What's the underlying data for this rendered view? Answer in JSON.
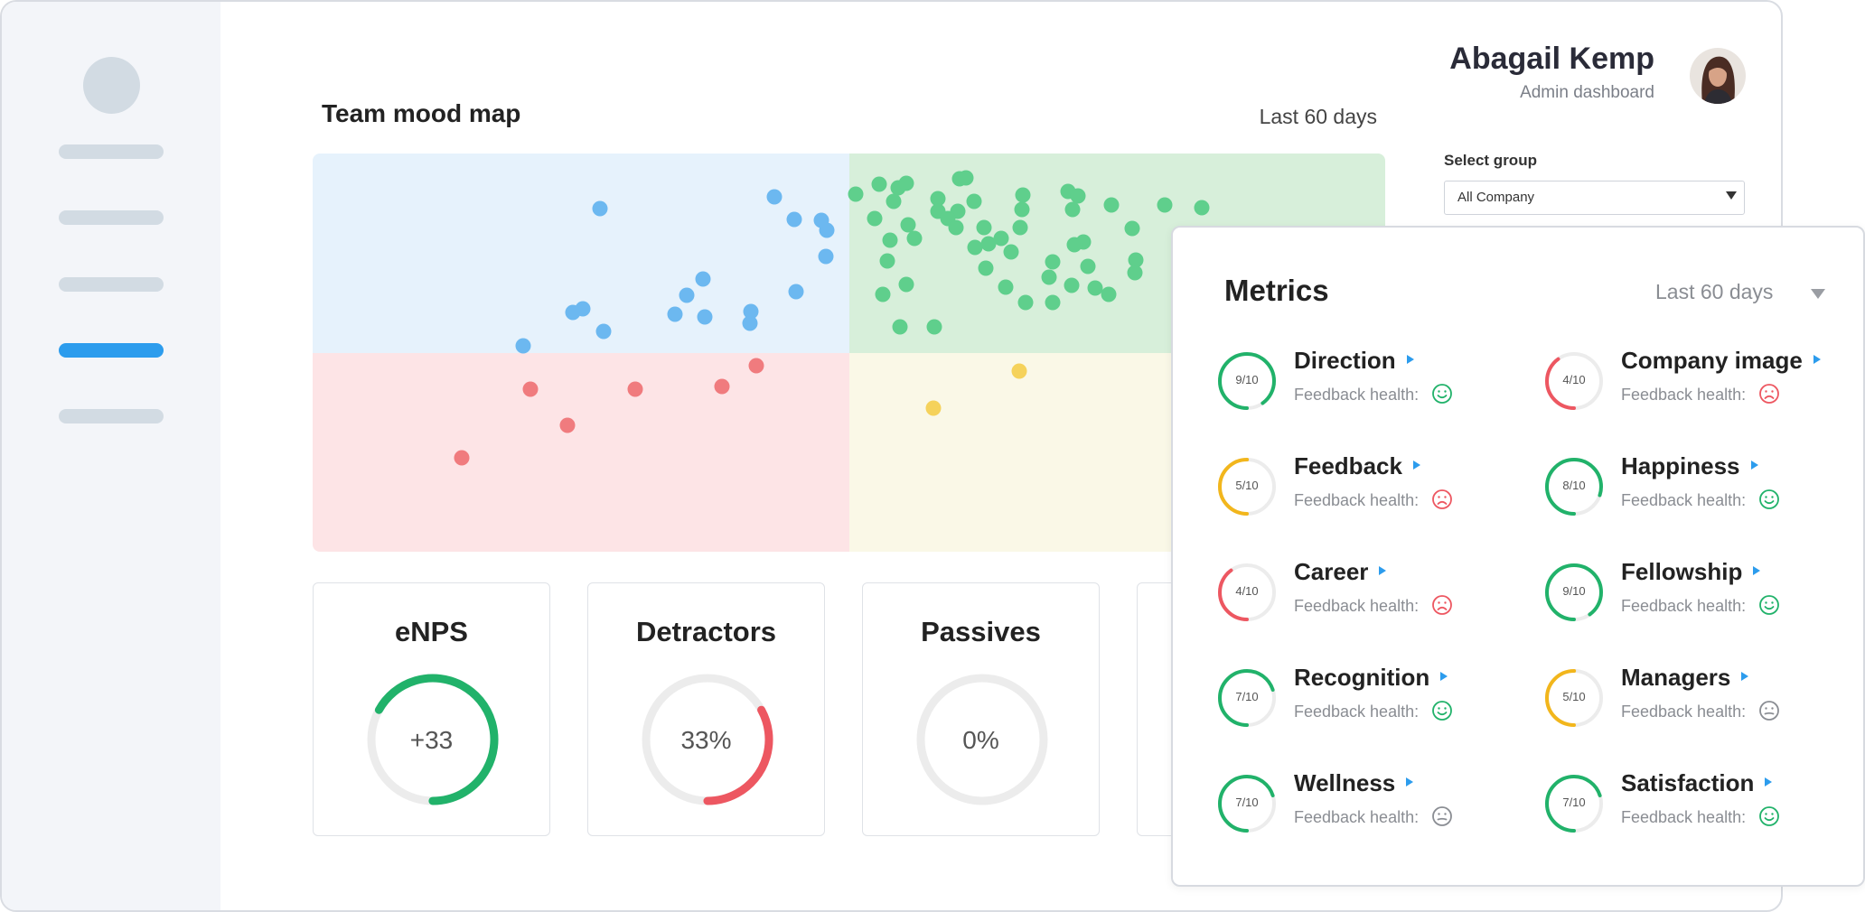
{
  "header": {
    "user_name": "Abagail Kemp",
    "user_role": "Admin dashboard"
  },
  "mood_map": {
    "title": "Team mood map",
    "range": "Last 60 days",
    "quadrant_colors": {
      "top_left": "#e6f2fc",
      "top_right": "#d7efda",
      "bottom_left": "#fde4e6",
      "bottom_right": "#faf8e7"
    },
    "dot_colors": {
      "blue": "#6cb8f0",
      "green": "#5fcf8c",
      "red": "#f07b7e",
      "yellow": "#f5d25b"
    }
  },
  "group_select": {
    "label": "Select group",
    "value": "All Company"
  },
  "stats": [
    {
      "title": "eNPS",
      "value": "+33",
      "color": "#21b26a",
      "fraction": 0.67
    },
    {
      "title": "Detractors",
      "value": "33%",
      "color": "#ed5761",
      "fraction": 0.33
    },
    {
      "title": "Passives",
      "value": "0%",
      "color": "#21b26a",
      "fraction": 0
    }
  ],
  "metrics": {
    "title": "Metrics",
    "range": "Last 60 days",
    "health_label": "Feedback health:",
    "items": [
      {
        "name": "Direction",
        "score": "9/10",
        "value": 9,
        "color": "#21b26a",
        "health": "happy"
      },
      {
        "name": "Company image",
        "score": "4/10",
        "value": 4,
        "color": "#ed5761",
        "health": "sad"
      },
      {
        "name": "Feedback",
        "score": "5/10",
        "value": 5,
        "color": "#f2b61c",
        "health": "sad"
      },
      {
        "name": "Happiness",
        "score": "8/10",
        "value": 8,
        "color": "#21b26a",
        "health": "happy"
      },
      {
        "name": "Career",
        "score": "4/10",
        "value": 4,
        "color": "#ed5761",
        "health": "sad"
      },
      {
        "name": "Fellowship",
        "score": "9/10",
        "value": 9,
        "color": "#21b26a",
        "health": "happy"
      },
      {
        "name": "Recognition",
        "score": "7/10",
        "value": 7,
        "color": "#21b26a",
        "health": "happy"
      },
      {
        "name": "Managers",
        "score": "5/10",
        "value": 5,
        "color": "#f2b61c",
        "health": "neutral"
      },
      {
        "name": "Wellness",
        "score": "7/10",
        "value": 7,
        "color": "#21b26a",
        "health": "neutral"
      },
      {
        "name": "Satisfaction",
        "score": "7/10",
        "value": 7,
        "color": "#21b26a",
        "health": "happy"
      }
    ]
  }
}
